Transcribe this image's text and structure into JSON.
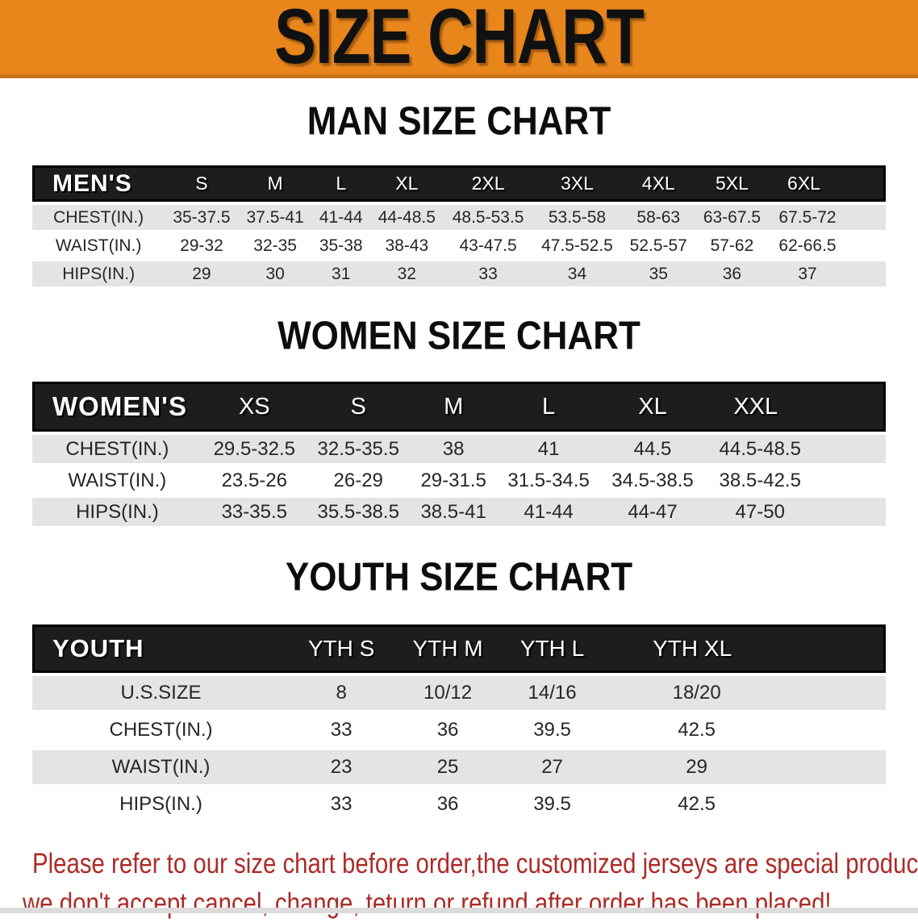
{
  "banner": {
    "title": "SIZE CHART"
  },
  "colors": {
    "banner-bg": "#E8861C",
    "banner-edge": "#C8701A",
    "header-bar-bg": "#1d1d1d",
    "row-alt-bg": "#E4E4E4",
    "row-bg": "#FFFFFF",
    "text-dark": "#262626",
    "disclaimer-red": "#AC2B28"
  },
  "sections": [
    {
      "id": "men",
      "heading": "MAN SIZE CHART",
      "table": {
        "header": [
          "MEN'S",
          "S",
          "M",
          "L",
          "XL",
          "2XL",
          "3XL",
          "4XL",
          "5XL",
          "6XL"
        ],
        "rows": [
          {
            "label": "CHEST(IN.)",
            "values": [
              "35-37.5",
              "37.5-41",
              "41-44",
              "44-48.5",
              "48.5-53.5",
              "53.5-58",
              "58-63",
              "63-67.5",
              "67.5-72"
            ]
          },
          {
            "label": "WAIST(IN.)",
            "values": [
              "29-32",
              "32-35",
              "35-38",
              "38-43",
              "43-47.5",
              "47.5-52.5",
              "52.5-57",
              "57-62",
              "62-66.5"
            ]
          },
          {
            "label": "HIPS(IN.)",
            "values": [
              "29",
              "30",
              "31",
              "32",
              "33",
              "34",
              "35",
              "36",
              "37"
            ]
          }
        ]
      }
    },
    {
      "id": "women",
      "heading": "WOMEN SIZE CHART",
      "table": {
        "header": [
          "WOMEN'S",
          "XS",
          "S",
          "M",
          "L",
          "XL",
          "XXL"
        ],
        "rows": [
          {
            "label": "CHEST(IN.)",
            "values": [
              "29.5-32.5",
              "32.5-35.5",
              "38",
              "41",
              "44.5",
              "44.5-48.5"
            ]
          },
          {
            "label": "WAIST(IN.)",
            "values": [
              "23.5-26",
              "26-29",
              "29-31.5",
              "31.5-34.5",
              "34.5-38.5",
              "38.5-42.5"
            ]
          },
          {
            "label": "HIPS(IN.)",
            "values": [
              "33-35.5",
              "35.5-38.5",
              "38.5-41",
              "41-44",
              "44-47",
              "47-50"
            ]
          }
        ]
      }
    },
    {
      "id": "youth",
      "heading": "YOUTH SIZE CHART",
      "table": {
        "header": [
          "YOUTH",
          "YTH S",
          "YTH M",
          "YTH L",
          "YTH XL"
        ],
        "rows": [
          {
            "label": "U.S.SIZE",
            "values": [
              "8",
              "10/12",
              "14/16",
              "18/20"
            ]
          },
          {
            "label": "CHEST(IN.)",
            "values": [
              "33",
              "36",
              "39.5",
              "42.5"
            ]
          },
          {
            "label": "WAIST(IN.)",
            "values": [
              "23",
              "25",
              "27",
              "29"
            ]
          },
          {
            "label": "HIPS(IN.)",
            "values": [
              "33",
              "36",
              "39.5",
              "42.5"
            ]
          }
        ]
      }
    }
  ],
  "disclaimer": {
    "line1": "Please refer to our size chart before order,the customized jerseys are special products,",
    "line2": "we don't accept cancel, change, teturn or refund after order has been placed!"
  }
}
